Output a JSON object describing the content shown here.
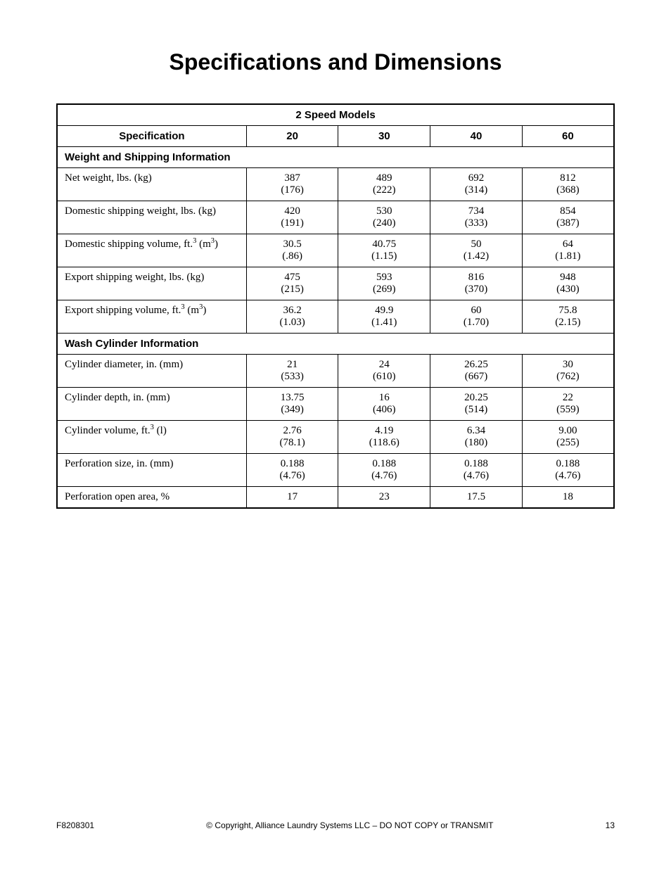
{
  "title": "Specifications and Dimensions",
  "table": {
    "title": "2 Speed Models",
    "spec_col_header": "Specification",
    "model_headers": [
      "20",
      "30",
      "40",
      "60"
    ],
    "col_widths_pct": [
      34,
      16.5,
      16.5,
      16.5,
      16.5
    ],
    "sections": [
      {
        "header": "Weight and Shipping Information",
        "rows": [
          {
            "label_html": "Net weight, lbs. (kg)",
            "values": [
              [
                "387",
                "(176)"
              ],
              [
                "489",
                "(222)"
              ],
              [
                "692",
                "(314)"
              ],
              [
                "812",
                "(368)"
              ]
            ]
          },
          {
            "label_html": "Domestic shipping weight, lbs. (kg)",
            "values": [
              [
                "420",
                "(191)"
              ],
              [
                "530",
                "(240)"
              ],
              [
                "734",
                "(333)"
              ],
              [
                "854",
                "(387)"
              ]
            ]
          },
          {
            "label_html": "Domestic shipping volume, ft.<sup>3</sup> (m<sup>3</sup>)",
            "values": [
              [
                "30.5",
                "(.86)"
              ],
              [
                "40.75",
                "(1.15)"
              ],
              [
                "50",
                "(1.42)"
              ],
              [
                "64",
                "(1.81)"
              ]
            ]
          },
          {
            "label_html": "Export shipping weight, lbs. (kg)",
            "values": [
              [
                "475",
                "(215)"
              ],
              [
                "593",
                "(269)"
              ],
              [
                "816",
                "(370)"
              ],
              [
                "948",
                "(430)"
              ]
            ]
          },
          {
            "label_html": "Export shipping volume, ft.<sup>3</sup> (m<sup>3</sup>)",
            "values": [
              [
                "36.2",
                "(1.03)"
              ],
              [
                "49.9",
                "(1.41)"
              ],
              [
                "60",
                "(1.70)"
              ],
              [
                "75.8",
                "(2.15)"
              ]
            ]
          }
        ]
      },
      {
        "header": "Wash Cylinder Information",
        "rows": [
          {
            "label_html": "Cylinder diameter, in. (mm)",
            "values": [
              [
                "21",
                "(533)"
              ],
              [
                "24",
                "(610)"
              ],
              [
                "26.25",
                "(667)"
              ],
              [
                "30",
                "(762)"
              ]
            ]
          },
          {
            "label_html": "Cylinder depth, in. (mm)",
            "values": [
              [
                "13.75",
                "(349)"
              ],
              [
                "16",
                "(406)"
              ],
              [
                "20.25",
                "(514)"
              ],
              [
                "22",
                "(559)"
              ]
            ]
          },
          {
            "label_html": "Cylinder volume, ft.<sup>3</sup> (l)",
            "values": [
              [
                "2.76",
                "(78.1)"
              ],
              [
                "4.19",
                "(118.6)"
              ],
              [
                "6.34",
                "(180)"
              ],
              [
                "9.00",
                "(255)"
              ]
            ]
          },
          {
            "label_html": "Perforation size, in. (mm)",
            "values": [
              [
                "0.188",
                "(4.76)"
              ],
              [
                "0.188",
                "(4.76)"
              ],
              [
                "0.188",
                "(4.76)"
              ],
              [
                "0.188",
                "(4.76)"
              ]
            ]
          },
          {
            "label_html": "Perforation open area, %",
            "values": [
              [
                "17"
              ],
              [
                "23"
              ],
              [
                "17.5"
              ],
              [
                "18"
              ]
            ]
          }
        ]
      }
    ]
  },
  "footer": {
    "doc_id": "F8208301",
    "copyright": "© Copyright, Alliance Laundry Systems LLC – DO NOT COPY or TRANSMIT",
    "page_number": "13"
  }
}
